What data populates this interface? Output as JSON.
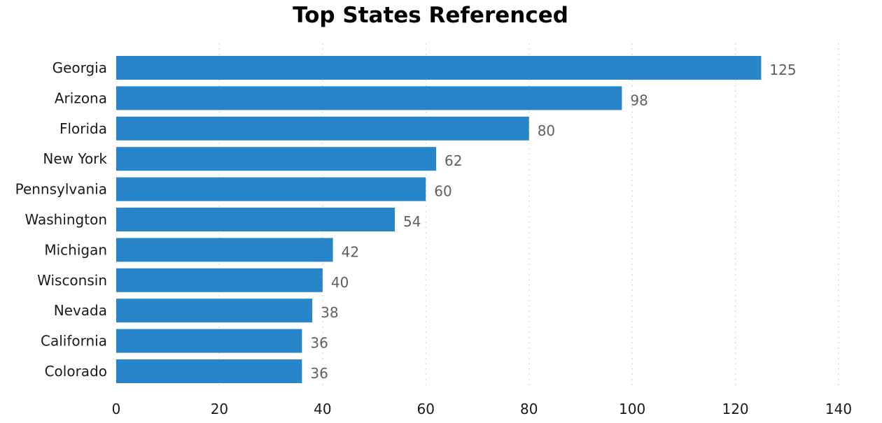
{
  "chart_data": {
    "type": "bar",
    "orientation": "horizontal",
    "title": "Top States Referenced",
    "xlabel": "",
    "ylabel": "",
    "categories": [
      "Georgia",
      "Arizona",
      "Florida",
      "New York",
      "Pennsylvania",
      "Washington",
      "Michigan",
      "Wisconsin",
      "Nevada",
      "California",
      "Colorado"
    ],
    "values": [
      125,
      98,
      80,
      62,
      60,
      54,
      42,
      40,
      38,
      36,
      36
    ],
    "xlim": [
      0,
      140
    ],
    "xticks": [
      0,
      20,
      40,
      60,
      80,
      100,
      120,
      140
    ],
    "grid": "vertical dotted",
    "legend": "none",
    "data_labels": true,
    "bar_color": "#2985CA",
    "label_color": "#606060"
  }
}
